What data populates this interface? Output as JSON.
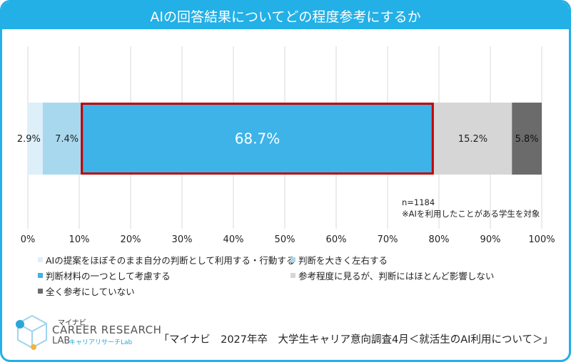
{
  "title": "AIの回答結果についてどの程度参考にするか",
  "chart_data": {
    "type": "bar",
    "orientation": "horizontal-stacked-100",
    "x_ticks": [
      "0%",
      "10%",
      "20%",
      "30%",
      "40%",
      "50%",
      "60%",
      "70%",
      "80%",
      "90%",
      "100%"
    ],
    "xlim": [
      0,
      100
    ],
    "grid": true,
    "legend_position": "bottom",
    "highlighted_series": 2,
    "series": [
      {
        "name": "AIの提案をほぼそのまま自分の判断として利用する・行動する",
        "value": 2.9,
        "label": "2.9%",
        "color": "#ddf0f9"
      },
      {
        "name": "判断を大きく左右する",
        "value": 7.4,
        "label": "7.4%",
        "color": "#a8d8ee"
      },
      {
        "name": "判断材料の一つとして考慮する",
        "value": 68.7,
        "label": "68.7%",
        "color": "#3db3e8"
      },
      {
        "name": "参考程度に見るが、判断にはほとんど影響しない",
        "value": 15.2,
        "label": "15.2%",
        "color": "#d6d6d6"
      },
      {
        "name": "全く参考にしていない",
        "value": 5.8,
        "label": "5.8%",
        "color": "#6b6b6b"
      }
    ]
  },
  "notes": [
    "n=1184",
    "※AIを利用したことがある学生を対象"
  ],
  "logo": {
    "brand_small": "マイナビ",
    "name": "CAREER RESEARCH",
    "lab": "LAB",
    "sub": "キャリアリサーチLab"
  },
  "source": "「マイナビ　2027年卒　大学生キャリア意向調査4月＜就活生のAI利用について＞」",
  "colors": {
    "accent": "#23b0e6",
    "highlight_border": "#c00000"
  }
}
